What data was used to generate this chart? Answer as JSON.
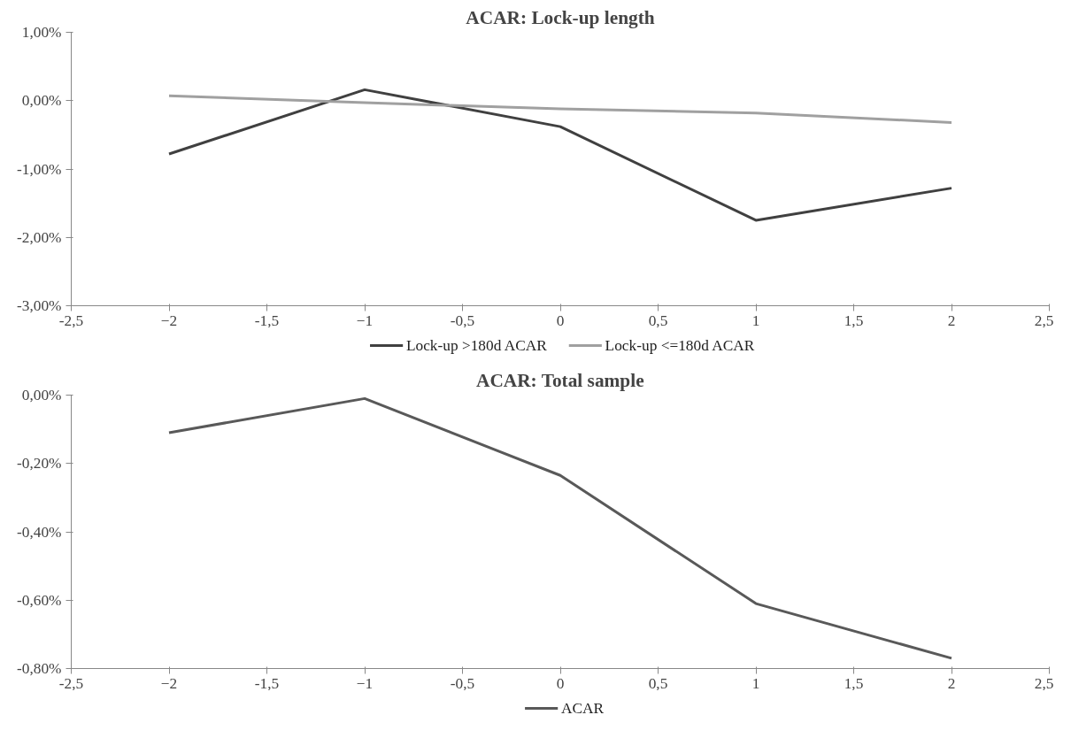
{
  "chart_data": [
    {
      "type": "line",
      "title": "ACAR: Lock-up length",
      "x": [
        -2,
        -1,
        0,
        1,
        2
      ],
      "series": [
        {
          "name": "Lock-up >180d ACAR",
          "color": "#404040",
          "values": [
            -0.78,
            0.16,
            -0.38,
            -1.75,
            -1.28
          ]
        },
        {
          "name": "Lock-up <=180d ACAR",
          "color": "#a0a0a0",
          "values": [
            0.07,
            -0.03,
            -0.12,
            -0.18,
            -0.32
          ]
        }
      ],
      "xlim": [
        -2.5,
        2.5
      ],
      "xticks": [
        {
          "value": -2.5,
          "label": "-2,5"
        },
        -2,
        {
          "value": -1.5,
          "label": "-1,5"
        },
        -1,
        {
          "value": -0.5,
          "label": "-0,5"
        },
        0,
        {
          "value": 0.5,
          "label": "0,5"
        },
        1,
        {
          "value": 1.5,
          "label": "1,5"
        },
        2,
        {
          "value": 2.5,
          "label": "2,5"
        }
      ],
      "ylim": [
        -3,
        1
      ],
      "yticks": [
        {
          "value": -3,
          "label": "-3,00%"
        },
        {
          "value": -2,
          "label": "-2,00%"
        },
        {
          "value": -1,
          "label": "-1,00%"
        },
        {
          "value": 0,
          "label": "0,00%"
        },
        {
          "value": 1,
          "label": "1,00%"
        }
      ],
      "grid": false,
      "legend": "bottom",
      "marker": "none",
      "line_style": "solid"
    },
    {
      "type": "line",
      "title": "ACAR: Total sample",
      "x": [
        -2,
        -1,
        0,
        1,
        2
      ],
      "series": [
        {
          "name": "ACAR",
          "color": "#595959",
          "values": [
            -0.11,
            -0.01,
            -0.235,
            -0.61,
            -0.77
          ]
        }
      ],
      "xlim": [
        -2.5,
        2.5
      ],
      "xticks": [
        {
          "value": -2.5,
          "label": "-2,5"
        },
        -2,
        {
          "value": -1.5,
          "label": "-1,5"
        },
        -1,
        {
          "value": -0.5,
          "label": "-0,5"
        },
        0,
        {
          "value": 0.5,
          "label": "0,5"
        },
        1,
        {
          "value": 1.5,
          "label": "1,5"
        },
        2,
        {
          "value": 2.5,
          "label": "2,5"
        }
      ],
      "ylim": [
        -0.8,
        0
      ],
      "yticks": [
        {
          "value": -0.8,
          "label": "-0,80%"
        },
        {
          "value": -0.6,
          "label": "-0,60%"
        },
        {
          "value": -0.4,
          "label": "-0,40%"
        },
        {
          "value": -0.2,
          "label": "-0,20%"
        },
        {
          "value": 0,
          "label": "0,00%"
        }
      ],
      "grid": false,
      "legend": "bottom",
      "marker": "none",
      "line_style": "solid"
    }
  ]
}
